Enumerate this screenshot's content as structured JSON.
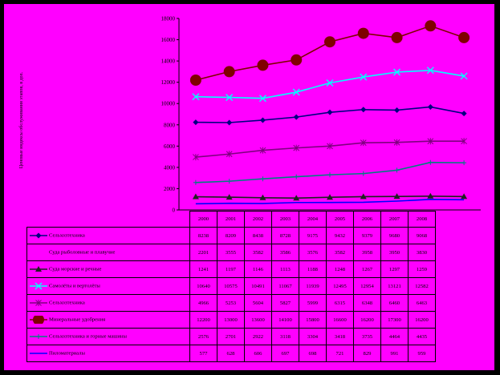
{
  "chart_data": {
    "type": "line",
    "ylabel": "Ценовые индексы обслуживания этапов, в дол.",
    "ylim": [
      0,
      18000
    ],
    "yticks": [
      "0",
      "2000",
      "4000",
      "6000",
      "8000",
      "10000",
      "12000",
      "14000",
      "16000",
      "18000"
    ],
    "x": [
      "2000",
      "2001",
      "2002",
      "2003",
      "2004",
      "2005",
      "2006",
      "2007",
      "2008"
    ],
    "series": [
      {
        "name": "Сельхозтехника",
        "color": "#000080",
        "marker": "diamond",
        "values": [
          8238,
          8209,
          8438,
          8728,
          9175,
          9432,
          9379,
          9680,
          9068
        ],
        "labels": [
          "8238",
          "8209",
          "8438",
          "8728",
          "9175",
          "9432",
          "9379",
          "9680",
          "9068"
        ]
      },
      {
        "name": "Суда рыболовные и плавучие",
        "color": "#ff00ff",
        "marker": "square",
        "values": [
          2201,
          3555,
          3582,
          3586,
          3576,
          3582,
          3958,
          3950,
          3830
        ],
        "labels": [
          "2201",
          "3555",
          "3582",
          "3586",
          "3576",
          "3582",
          "3958",
          "3950",
          "3830"
        ]
      },
      {
        "name": "Суда морские и речные",
        "color": "#202020",
        "marker": "triangle",
        "values": [
          1241,
          1197,
          1146,
          1113,
          1188,
          1248,
          1267,
          1297,
          1259
        ],
        "labels": [
          "1241",
          "1197",
          "1146",
          "1113",
          "1188",
          "1248",
          "1267",
          "1297",
          "1259"
        ]
      },
      {
        "name": "Самолёты и вертолёты",
        "color": "#00ffff",
        "marker": "x",
        "values": [
          10640,
          10575,
          10491,
          11067,
          11939,
          12495,
          12954,
          13121,
          12582
        ],
        "labels": [
          "10640",
          "10575",
          "10491",
          "11067",
          "11939",
          "12495",
          "12954",
          "13121",
          "12582"
        ]
      },
      {
        "name": "Сельхозтехника",
        "color": "#800080",
        "marker": "star",
        "values": [
          4966,
          5253,
          5604,
          5827,
          5999,
          6315,
          6348,
          6460,
          6463
        ],
        "labels": [
          "4966",
          "5253",
          "5604",
          "5827",
          "5999",
          "6315",
          "6348",
          "6460",
          "6463"
        ]
      },
      {
        "name": "Минеральные удобрения",
        "color": "#800000",
        "marker": "circle",
        "values": [
          12200,
          13000,
          13600,
          14100,
          15800,
          16600,
          16200,
          17300,
          16200
        ],
        "labels": [
          "12200",
          "13000",
          "13600",
          "14100",
          "15800",
          "16600",
          "16200",
          "17300",
          "16200"
        ]
      },
      {
        "name": "Сельхозтехника и горные машины",
        "color": "#008080",
        "marker": "plus",
        "values": [
          2576,
          2701,
          2922,
          3118,
          3304,
          3418,
          3735,
          4464,
          4435
        ],
        "labels": [
          "2576",
          "2701",
          "2922",
          "3118",
          "3304",
          "3418",
          "3735",
          "4464",
          "4435"
        ]
      },
      {
        "name": "Пиломатериалы",
        "color": "#0000ff",
        "marker": "none",
        "values": [
          577,
          628,
          606,
          697,
          698,
          721,
          829,
          991,
          959
        ],
        "labels": [
          "577",
          "628",
          "606",
          "697",
          "698",
          "721",
          "829",
          "991",
          "959"
        ]
      }
    ]
  }
}
